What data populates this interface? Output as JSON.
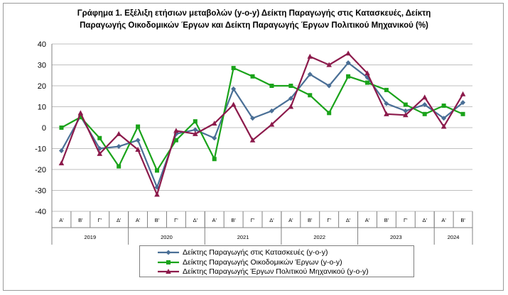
{
  "chart_data": {
    "type": "line",
    "title_line1": "Γράφημα 1. Εξέλιξη ετήσιων μεταβολών (y-o-y) Δείκτη Παραγωγής στις Κατασκευές, Δείκτη",
    "title_line2": "Παραγωγής Οικοδομικών Έργων και  Δείκτη Παραγωγής  Έργων Πολιτικού Μηχανικού (%)",
    "xlabel": "",
    "ylabel": "",
    "ylim": [
      -40,
      40
    ],
    "yticks": [
      "40",
      "30",
      "20",
      "10",
      "0",
      "-10",
      "-20",
      "-30",
      "-40"
    ],
    "categories": [
      "Α'",
      "Β'",
      "Γ'",
      "Δ'",
      "Α'",
      "Β'",
      "Γ'",
      "Δ'",
      "Α'",
      "Β'",
      "Γ'",
      "Δ'",
      "Α'",
      "Β'",
      "Γ'",
      "Δ'",
      "Α'",
      "Β'",
      "Γ'",
      "Δ'",
      "Α'",
      "Β'"
    ],
    "years": [
      {
        "label": "2019",
        "start": 0,
        "count": 4
      },
      {
        "label": "2020",
        "start": 4,
        "count": 4
      },
      {
        "label": "2021",
        "start": 8,
        "count": 4
      },
      {
        "label": "2022",
        "start": 12,
        "count": 4
      },
      {
        "label": "2023",
        "start": 16,
        "count": 4
      },
      {
        "label": "2024",
        "start": 20,
        "count": 2
      }
    ],
    "grid": true,
    "legend_position": "bottom",
    "series": [
      {
        "name": "Δείκτης Παραγωγής στις Κατασκευές (y-o-y)",
        "color": "#4a6f96",
        "marker": "diamond",
        "values": [
          -11,
          5.5,
          -10,
          -9,
          -6,
          -28.5,
          -3,
          -1,
          -5,
          18.5,
          4.5,
          8,
          14,
          25.5,
          20,
          31,
          24,
          11.5,
          8,
          11,
          4.5,
          12
        ]
      },
      {
        "name": "Δείκτης Παραγωγής Οικοδομικών Έργων (y-o-y)",
        "color": "#1aa31a",
        "marker": "square",
        "values": [
          0,
          5,
          -5,
          -18.5,
          0.5,
          -20.5,
          -6,
          3,
          -15,
          28.5,
          24.5,
          20,
          20,
          15.5,
          7,
          24.5,
          21.5,
          18,
          11,
          6.5,
          10.5,
          6.5
        ]
      },
      {
        "name": "Δείκτης Παραγωγής Έργων Πολιτικού Μηχανικού (y-o-y)",
        "color": "#8c1a4b",
        "marker": "triangle",
        "values": [
          -17,
          7,
          -12.5,
          -3,
          -10.5,
          -32,
          -1.5,
          -3,
          2,
          11,
          -6,
          1.5,
          10,
          34,
          30,
          35.5,
          26,
          6.5,
          6,
          14.5,
          0.5,
          16
        ]
      }
    ]
  }
}
